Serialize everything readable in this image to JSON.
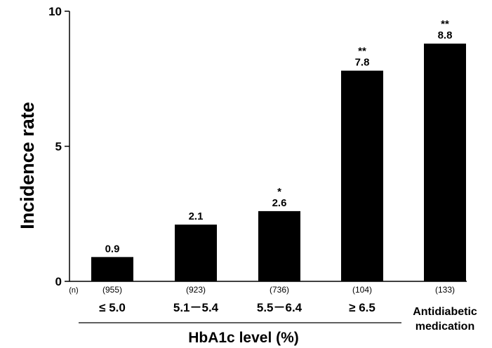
{
  "chart_data": {
    "type": "bar",
    "ylabel": "Incidence rate",
    "ylim": [
      0,
      10
    ],
    "yticks": [
      "0",
      "5",
      "10"
    ],
    "n_prefix": "(n)",
    "group_label": "HbA1c level (%)",
    "bar_color": "#000000",
    "categories": [
      {
        "label": "≤ 5.0",
        "n": "(955)",
        "value": 0.9,
        "value_label": "0.9",
        "sig": ""
      },
      {
        "label": "5.1－5.4",
        "n": "(923)",
        "value": 2.1,
        "value_label": "2.1",
        "sig": ""
      },
      {
        "label": "5.5－6.4",
        "n": "(736)",
        "value": 2.6,
        "value_label": "2.6",
        "sig": "*"
      },
      {
        "label": "≥ 6.5",
        "n": "(104)",
        "value": 7.8,
        "value_label": "7.8",
        "sig": "**"
      },
      {
        "label": [
          "Antidiabetic",
          "medication"
        ],
        "n": "(133)",
        "value": 8.8,
        "value_label": "8.8",
        "sig": "**"
      }
    ]
  }
}
